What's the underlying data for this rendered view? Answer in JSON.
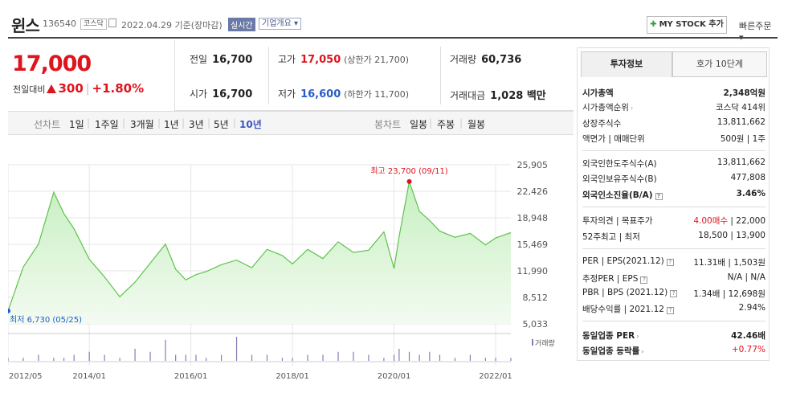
{
  "header": {
    "name": "윈스",
    "code": "136540",
    "market": "코스닥",
    "date": "2022.04.29 기준(장마감)",
    "realtime": "실시간",
    "overview": "기업개요 ▾",
    "my_stock": "MY STOCK 추가",
    "quick_order": "빠른주문 ▾"
  },
  "price": {
    "current": "17,000",
    "change_label": "전일대비",
    "change_amount": "300",
    "change_pct": "+1.80%"
  },
  "stats": {
    "prev_close_label": "전일",
    "prev_close": "16,700",
    "high_label": "고가",
    "high": "17,050",
    "upper_limit": "(상한가 21,700)",
    "volume_label": "거래량",
    "volume": "60,736",
    "open_label": "시가",
    "open": "16,700",
    "low_label": "저가",
    "low": "16,600",
    "lower_limit": "(하한가 11,700)",
    "value_label": "거래대금",
    "value": "1,028 백만"
  },
  "tabs": {
    "line_label": "선차트",
    "line_periods": [
      "1일",
      "1주일",
      "3개월",
      "1년",
      "3년",
      "5년",
      "10년"
    ],
    "active": "10년",
    "candle_label": "봉차트",
    "candle_periods": [
      "일봉",
      "주봉",
      "월봉"
    ]
  },
  "chart_data": {
    "type": "area",
    "y_ticks": [
      "25,905",
      "22,426",
      "18,948",
      "15,469",
      "11,990",
      "8,512",
      "5,033"
    ],
    "ylim": [
      5033,
      25905
    ],
    "x_ticks": [
      "2012/05",
      "2014/01",
      "2016/01",
      "2018/01",
      "2020/01",
      "2022/01"
    ],
    "x": [
      2012.4,
      2012.7,
      2013.0,
      2013.3,
      2013.5,
      2013.7,
      2014.0,
      2014.3,
      2014.6,
      2014.9,
      2015.2,
      2015.5,
      2015.7,
      2015.9,
      2016.1,
      2016.3,
      2016.6,
      2016.9,
      2017.2,
      2017.5,
      2017.8,
      2018.0,
      2018.3,
      2018.6,
      2018.9,
      2019.2,
      2019.5,
      2019.8,
      2020.0,
      2020.1,
      2020.3,
      2020.5,
      2020.7,
      2020.9,
      2021.2,
      2021.5,
      2021.8,
      2022.0,
      2022.3
    ],
    "y": [
      6730,
      12500,
      15500,
      22300,
      19500,
      17500,
      13500,
      11200,
      8600,
      10500,
      13000,
      15500,
      12200,
      10800,
      11500,
      11900,
      12800,
      13400,
      12400,
      14800,
      14000,
      12900,
      14800,
      13600,
      15800,
      14400,
      14700,
      17100,
      12300,
      16500,
      23700,
      19800,
      18600,
      17200,
      16400,
      16900,
      15400,
      16300,
      17000
    ],
    "max_label": "최고 23,700 (09/11)",
    "min_label": "최저 6,730 (05/25)",
    "volume_label": "거래량",
    "volume": [
      1,
      1,
      2,
      1,
      1,
      2,
      3,
      2,
      1,
      4,
      3,
      7,
      2,
      2,
      2,
      1,
      2,
      8,
      2,
      2,
      1,
      1,
      2,
      2,
      3,
      3,
      2,
      1,
      2,
      4,
      3,
      2,
      3,
      2,
      1,
      2,
      1,
      1,
      1
    ]
  },
  "invest": {
    "tab1": "투자정보",
    "tab2": "호가 10단계",
    "market_cap_label": "시가총액",
    "market_cap": "2,348억원",
    "rank_label": "시가총액순위",
    "rank": "코스닥 414위",
    "shares_label": "상장주식수",
    "shares": "13,811,662",
    "par_label": "액면가 | 매매단위",
    "par": "500원 | 1주",
    "foreign_limit_label": "외국인한도주식수(A)",
    "foreign_limit": "13,811,662",
    "foreign_hold_label": "외국인보유주식수(B)",
    "foreign_hold": "477,808",
    "foreign_ratio_label": "외국인소진율(B/A)",
    "foreign_ratio": "3.46%",
    "opinion_label": "투자의견 | 목표주가",
    "opinion": "4.00매수",
    "target": " | 22,000",
    "range_label": "52주최고 | 최저",
    "range": "18,500 | 13,900",
    "per_label": "PER | EPS(2021.12)",
    "per": "11.31배 | 1,503원",
    "est_label": "추정PER | EPS",
    "est": "N/A | N/A",
    "pbr_label": "PBR | BPS (2021.12)",
    "pbr": "1.34배 | 12,698원",
    "div_label": "배당수익률 | 2021.12",
    "div": "2.94%",
    "ind_per_label": "동일업종 PER",
    "ind_per": "42.46배",
    "ind_chg_label": "동일업종 등락률",
    "ind_chg": "+0.77%"
  }
}
